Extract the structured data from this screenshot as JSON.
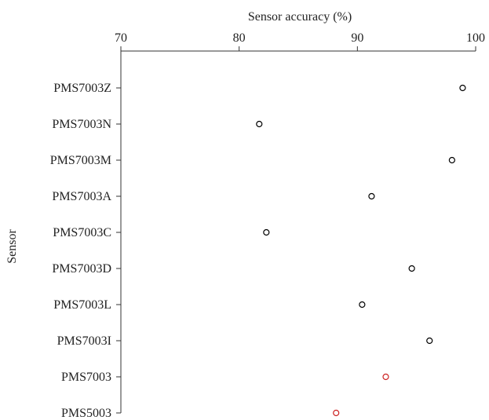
{
  "chart_data": {
    "type": "scatter",
    "xlabel": "Sensor accuracy (%)",
    "ylabel": "Sensor",
    "xlim": [
      70,
      100
    ],
    "xticks": [
      70,
      80,
      90,
      100
    ],
    "x_axis_position": "top",
    "grid": false,
    "legend": "none",
    "categories": [
      "PMS7003Z",
      "PMS7003N",
      "PMS7003M",
      "PMS7003A",
      "PMS7003C",
      "PMS7003D",
      "PMS7003L",
      "PMS7003I",
      "PMS7003",
      "PMS5003"
    ],
    "values": [
      98.9,
      81.7,
      98.0,
      91.2,
      82.3,
      94.6,
      90.4,
      96.1,
      92.4,
      88.2
    ],
    "colors": [
      "#000000",
      "#000000",
      "#000000",
      "#000000",
      "#000000",
      "#000000",
      "#000000",
      "#000000",
      "#cc2222",
      "#cc2222"
    ],
    "marker": "open-circle"
  }
}
